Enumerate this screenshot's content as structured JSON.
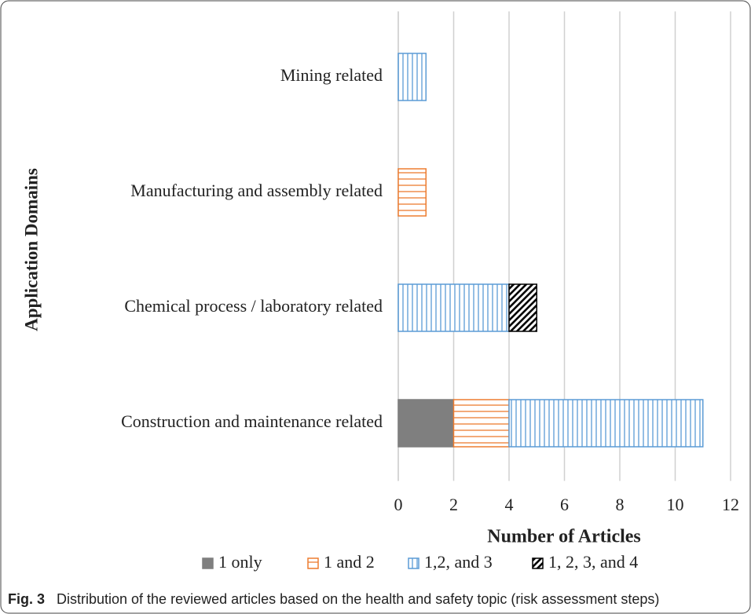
{
  "chart_data": {
    "type": "stacked_hbar",
    "categories": [
      "Mining related",
      "Manufacturing and assembly related",
      "Chemical process / laboratory related",
      "Construction and maintenance related"
    ],
    "series": [
      {
        "name": "1 only",
        "color": "#7f7f7f",
        "pattern": "solid",
        "values": [
          0,
          0,
          0,
          2
        ]
      },
      {
        "name": "1 and 2",
        "color": "#ed7d31",
        "pattern": "horizontal",
        "values": [
          0,
          1,
          0,
          2
        ]
      },
      {
        "name": "1,2, and 3",
        "color": "#5b9bd5",
        "pattern": "vertical",
        "values": [
          1,
          0,
          4,
          7
        ]
      },
      {
        "name": "1, 2, 3, and 4",
        "color": "#000000",
        "pattern": "diagonal",
        "values": [
          0,
          0,
          1,
          0
        ]
      }
    ],
    "xlim": [
      0,
      12
    ],
    "xticks": [
      0,
      2,
      4,
      6,
      8,
      10,
      12
    ],
    "grid": true,
    "x_label": "Number of Articles",
    "y_label": "Application Domains",
    "legend": "bottom",
    "caption_label": "Fig. 3",
    "caption": "Distribution of the reviewed articles based on the health and safety topic (risk assessment steps)"
  }
}
